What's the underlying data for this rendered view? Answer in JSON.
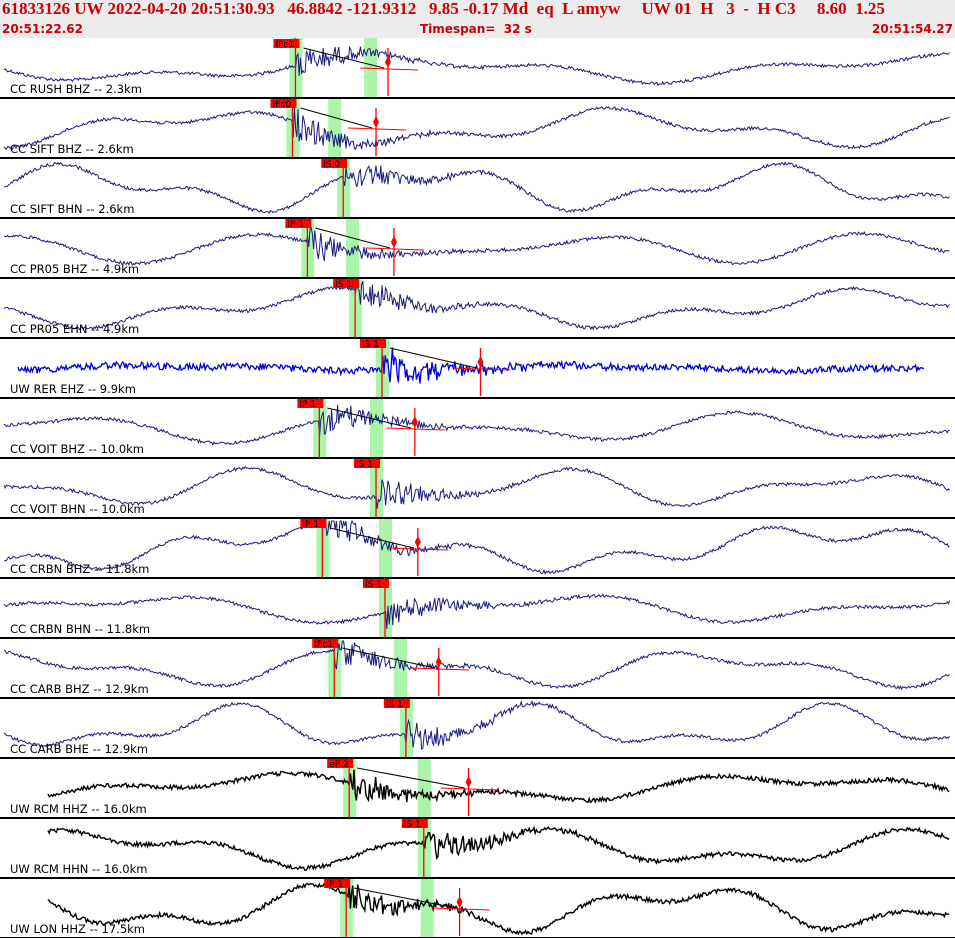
{
  "header": {
    "event_line": "61833126 UW 2022-04-20 20:51:30.93   46.8842 -121.9312   9.85 -0.17 Md  eq  L amyw     UW 01  H   3  -  H C3     8.60  1.25",
    "start_time": "20:51:22.62",
    "timespan_label": "Timespan=  32 s",
    "end_time": "20:51:54.27"
  },
  "colors": {
    "header_text": "#cc0000",
    "pick": "#ff0000",
    "window": "#aaf5aa",
    "trace_blue": "#1a1a80",
    "trace_bright": "#0000dd",
    "trace_black": "#000000"
  },
  "chart_data": {
    "type": "line",
    "title": "",
    "x_unit": "s",
    "xlim": [
      0,
      32
    ],
    "traces": [
      {
        "label": "CC RUSH BHZ -- 2.3km",
        "color": "#1a1a80",
        "pick_label": "IPc1",
        "pick_time": 9.9,
        "phase2_time": 12.4,
        "coda_time": 13.0
      },
      {
        "label": "CC SIFT BHZ -- 2.6km",
        "color": "#1a1a80",
        "pick_label": "IPc0",
        "pick_time": 9.8,
        "phase2_time": 11.2,
        "coda_time": 12.6
      },
      {
        "label": "CC SIFT BHN -- 2.6km",
        "color": "#1a1a80",
        "pick_label": "IS 0",
        "pick_time": 11.5,
        "phase2_time": null,
        "coda_time": null
      },
      {
        "label": "CC PR05 BHZ -- 4.9km",
        "color": "#1a1a80",
        "pick_label": "IP 1",
        "pick_time": 10.3,
        "phase2_time": 11.8,
        "coda_time": 13.2
      },
      {
        "label": "CC PR05 EHN -- 4.9km",
        "color": "#1a1a80",
        "pick_label": "IS 1",
        "pick_time": 11.9,
        "phase2_time": null,
        "coda_time": null
      },
      {
        "label": "UW RER EHZ -- 9.9km",
        "color": "#0000dd",
        "pick_label": "IS 1",
        "pick_time": 12.8,
        "phase2_time": null,
        "coda_time": 16.1
      },
      {
        "label": "CC VOIT BHZ -- 10.0km",
        "color": "#1a1a80",
        "pick_label": "IP 1",
        "pick_time": 10.7,
        "phase2_time": 12.6,
        "coda_time": 13.9
      },
      {
        "label": "CC VOIT BHN -- 10.0km",
        "color": "#1a1a80",
        "pick_label": "IS 1",
        "pick_time": 12.6,
        "phase2_time": null,
        "coda_time": null
      },
      {
        "label": "CC CRBN BHZ -- 11.8km",
        "color": "#1a1a80",
        "pick_label": "IP 1",
        "pick_time": 10.8,
        "phase2_time": 12.9,
        "coda_time": 14.0
      },
      {
        "label": "CC CRBN BHN -- 11.8km",
        "color": "#1a1a80",
        "pick_label": "IS 1",
        "pick_time": 12.9,
        "phase2_time": null,
        "coda_time": null
      },
      {
        "label": "CC CARB BHZ -- 12.9km",
        "color": "#1a1a80",
        "pick_label": "IPc1",
        "pick_time": 11.2,
        "phase2_time": 13.4,
        "coda_time": 14.7
      },
      {
        "label": "CC CARB BHE -- 12.9km",
        "color": "#1a1a80",
        "pick_label": "IS 1",
        "pick_time": 13.6,
        "phase2_time": null,
        "coda_time": null
      },
      {
        "label": "UW RCM HHZ -- 16.0km",
        "color": "#000000",
        "pick_label": "eP 2",
        "pick_time": 11.7,
        "phase2_time": 14.2,
        "coda_time": 15.7
      },
      {
        "label": "UW RCM HHN -- 16.0km",
        "color": "#000000",
        "pick_label": "IS 1",
        "pick_time": 14.2,
        "phase2_time": null,
        "coda_time": null
      },
      {
        "label": "UW LON HHZ -- 17.5km",
        "color": "#000000",
        "pick_label": "IP 1",
        "pick_time": 11.6,
        "phase2_time": 14.3,
        "coda_time": 15.4
      }
    ]
  }
}
